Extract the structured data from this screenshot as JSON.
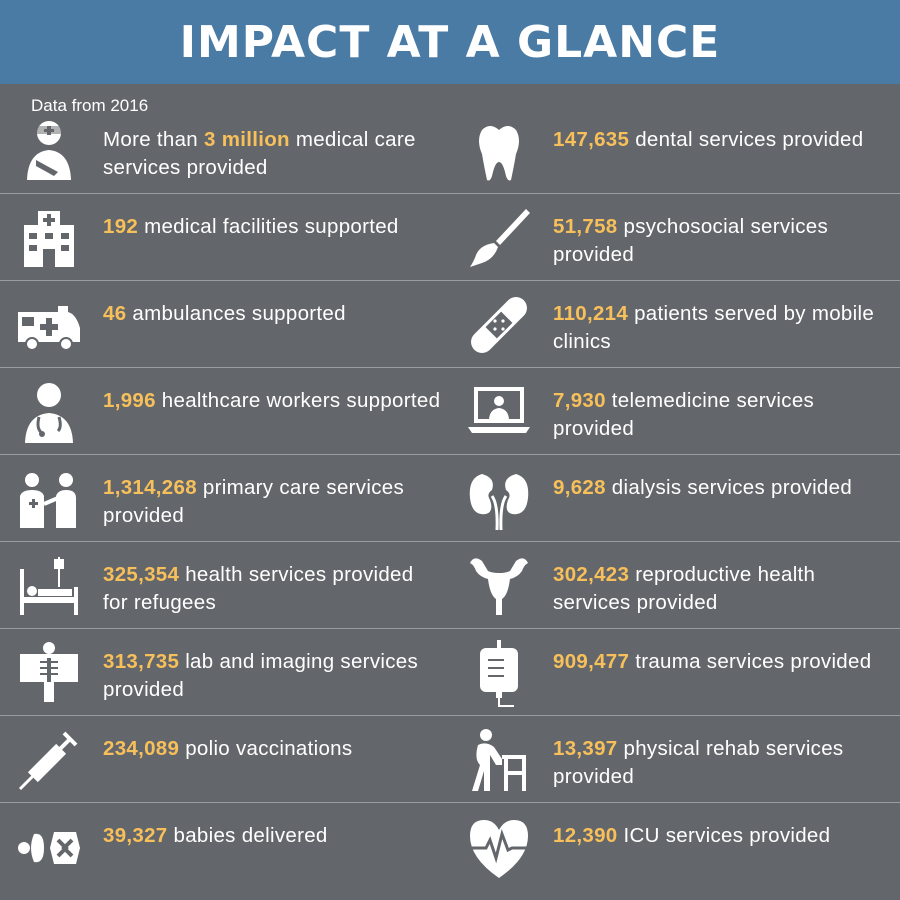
{
  "title": "IMPACT AT A GLANCE",
  "subtitle": "Data from 2016",
  "colors": {
    "header": "#4a7ba5",
    "background": "#63666a",
    "accent": "#f7c05a",
    "text": "#ffffff"
  },
  "rows": [
    {
      "left": {
        "icon": "injured-person-icon",
        "pre": "More than ",
        "num": "3 million",
        "post": " medical care services provided"
      },
      "right": {
        "icon": "tooth-icon",
        "pre": "",
        "num": "147,635",
        "post": " dental services provided"
      }
    },
    {
      "left": {
        "icon": "hospital-icon",
        "pre": "",
        "num": "192",
        "post": " medical facilities supported"
      },
      "right": {
        "icon": "paintbrush-icon",
        "pre": "",
        "num": "51,758",
        "post": " psychosocial services provided"
      }
    },
    {
      "left": {
        "icon": "ambulance-icon",
        "pre": "",
        "num": "46",
        "post": " ambulances supported"
      },
      "right": {
        "icon": "bandage-icon",
        "pre": "",
        "num": "110,214",
        "post": " patients served by mobile clinics"
      }
    },
    {
      "left": {
        "icon": "doctor-icon",
        "pre": "",
        "num": "1,996",
        "post": " healthcare workers supported"
      },
      "right": {
        "icon": "laptop-doctor-icon",
        "pre": "",
        "num": "7,930",
        "post": " telemedicine services provided"
      }
    },
    {
      "left": {
        "icon": "doctor-patient-icon",
        "pre": "",
        "num": "1,314,268",
        "post": " primary care services provided"
      },
      "right": {
        "icon": "kidneys-icon",
        "pre": "",
        "num": "9,628",
        "post": " dialysis services provided"
      }
    },
    {
      "left": {
        "icon": "hospital-bed-icon",
        "pre": "",
        "num": "325,354",
        "post": " health services provided for refugees"
      },
      "right": {
        "icon": "uterus-icon",
        "pre": "",
        "num": "302,423",
        "post": " reproductive health services provided"
      }
    },
    {
      "left": {
        "icon": "xray-icon",
        "pre": "",
        "num": "313,735",
        "post": " lab and imaging services provided"
      },
      "right": {
        "icon": "iv-bag-icon",
        "pre": "",
        "num": "909,477",
        "post": " trauma services provided"
      }
    },
    {
      "left": {
        "icon": "syringe-icon",
        "pre": "",
        "num": "234,089",
        "post": " polio vaccinations"
      },
      "right": {
        "icon": "walker-icon",
        "pre": "",
        "num": "13,397",
        "post": " physical rehab services provided"
      }
    },
    {
      "left": {
        "icon": "baby-delivery-icon",
        "pre": "",
        "num": "39,327",
        "post": " babies delivered"
      },
      "right": {
        "icon": "heart-pulse-icon",
        "pre": "",
        "num": "12,390",
        "post": " ICU services provided"
      }
    }
  ]
}
